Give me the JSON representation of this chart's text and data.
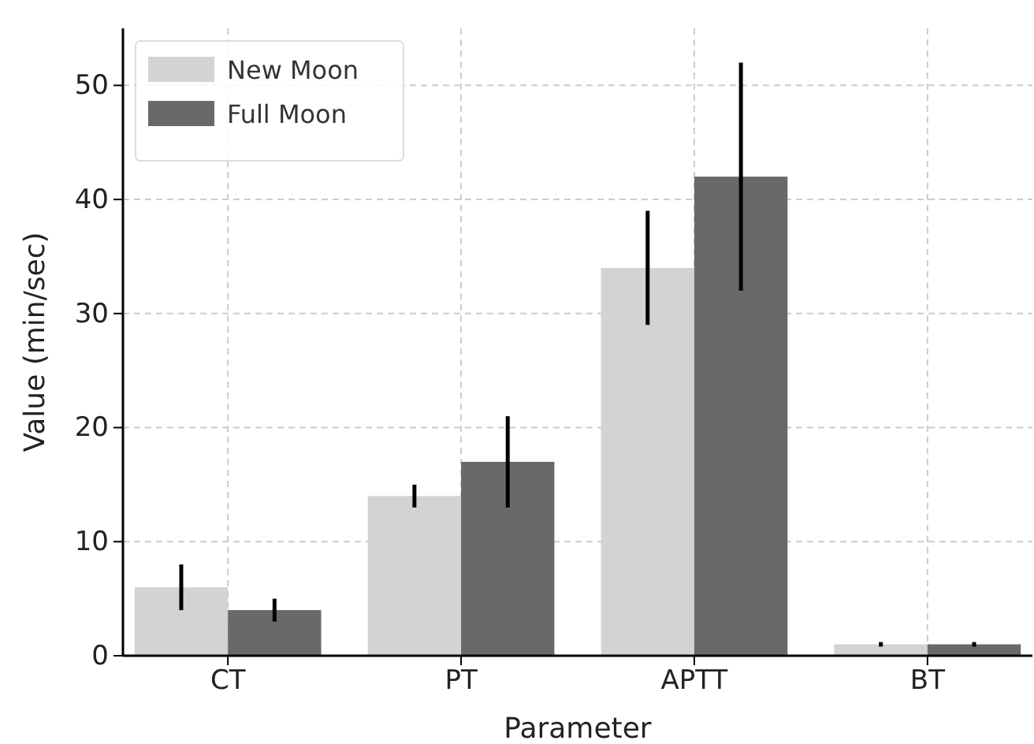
{
  "chart_data": {
    "type": "bar",
    "xlabel": "Parameter",
    "ylabel": "Value (min/sec)",
    "categories": [
      "CT",
      "PT",
      "APTT",
      "BT"
    ],
    "series": [
      {
        "name": "New Moon",
        "color": "#d3d3d3",
        "values": [
          6,
          14,
          34,
          1
        ],
        "errors": [
          2,
          1,
          5,
          0.2
        ]
      },
      {
        "name": "Full Moon",
        "color": "#696969",
        "values": [
          4,
          17,
          42,
          1
        ],
        "errors": [
          1,
          4,
          10,
          0.2
        ]
      }
    ],
    "ylim": [
      0,
      55
    ],
    "yticks": [
      0,
      10,
      20,
      30,
      40,
      50
    ],
    "grid": true,
    "legend": "top left"
  }
}
